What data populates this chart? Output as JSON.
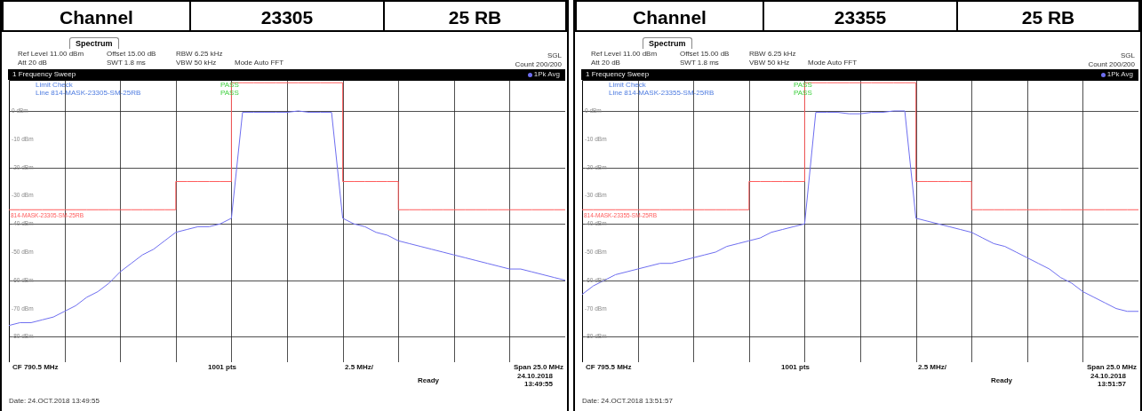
{
  "chart_data": [
    {
      "type": "line",
      "ylim": [
        -89,
        11
      ],
      "yticks": [
        {
          "value": 0,
          "label": "0 dBm"
        },
        {
          "value": -10,
          "label": "-10 dBm"
        },
        {
          "value": -20,
          "label": "-20 dBm"
        },
        {
          "value": -30,
          "label": "-30 dBm"
        },
        {
          "value": -40,
          "label": "-40 dBm"
        },
        {
          "value": -50,
          "label": "-50 dBm"
        },
        {
          "value": -60,
          "label": "-60 dBm"
        },
        {
          "value": -70,
          "label": "-70 dBm"
        },
        {
          "value": -80,
          "label": "-80 dBm"
        }
      ],
      "categories": [
        null,
        null,
        null,
        null,
        null,
        null,
        null,
        null,
        null,
        null,
        null,
        null,
        null,
        null,
        null,
        null,
        null,
        null,
        null,
        null,
        null,
        null,
        null,
        null,
        null,
        null,
        null,
        null,
        null,
        null,
        null,
        null,
        null,
        null,
        null,
        null,
        null,
        null,
        null,
        null,
        null,
        null,
        null,
        null,
        null,
        null,
        null,
        null,
        null,
        null,
        null
      ],
      "tick_labels": "y",
      "grid": true,
      "legend": "top right",
      "series": [
        {
          "name": "1Pk Avg",
          "color": "#6e6ef0",
          "values": [
            -76,
            -75,
            -75,
            -74,
            -73,
            -71,
            -69,
            -66,
            -64,
            -61,
            -57,
            -54,
            -51,
            -49,
            -46,
            -43,
            -42,
            -41,
            -41,
            -40,
            -38,
            -0.5,
            -0.5,
            -0.5,
            -0.5,
            -0.5,
            0,
            -0.5,
            -0.5,
            -0.5,
            -38,
            -40,
            -41,
            -43,
            -44,
            -46,
            -47,
            -48,
            -49,
            -50,
            -51,
            -52,
            -53,
            -54,
            -55,
            -56,
            -56,
            -57,
            -58,
            -59,
            -60
          ]
        },
        {
          "name": "814-MASK-23305-SM-25RB",
          "type": "step",
          "color": "#ff5a5a",
          "values": [
            -35,
            -35,
            -35,
            -35,
            -35,
            -35,
            -35,
            -35,
            -35,
            -35,
            -35,
            -35,
            -35,
            -35,
            -35,
            -25,
            -25,
            -25,
            -25,
            -25,
            10,
            10,
            10,
            10,
            10,
            10,
            10,
            10,
            10,
            10,
            -25,
            -25,
            -25,
            -25,
            -25,
            -35,
            -35,
            -35,
            -35,
            -35,
            -35,
            -35,
            -35,
            -35,
            -35,
            -35,
            -35,
            -35,
            -35,
            -35,
            -35
          ]
        }
      ],
      "annotations": [
        "Channel",
        "23305",
        "25 RB",
        "Spectrum",
        "Ref Level 11.00 dBm",
        "Offset 15.00 dB",
        "RBW 6.25 kHz",
        "Att 20 dB",
        "SWT 1.8 ms",
        "VBW 50 kHz",
        "Mode Auto FFT",
        "SGL",
        "Count 200/200",
        "1 Frequency Sweep",
        "Limit Check",
        "PASS",
        "Line 814-MASK-23305-SM-25RB",
        "PASS",
        "CF 790.5 MHz",
        "1001 pts",
        "2.5 MHz/",
        "Span 25.0 MHz",
        "Ready",
        "24.10.2018",
        "13:49:55",
        "Date: 24.OCT.2018 13:49:55"
      ]
    },
    {
      "type": "line",
      "ylim": [
        -89,
        11
      ],
      "yticks": [
        {
          "value": 0,
          "label": "0 dBm"
        },
        {
          "value": -10,
          "label": "-10 dBm"
        },
        {
          "value": -20,
          "label": "-20 dBm"
        },
        {
          "value": -30,
          "label": "-30 dBm"
        },
        {
          "value": -40,
          "label": "-40 dBm"
        },
        {
          "value": -50,
          "label": "-50 dBm"
        },
        {
          "value": -60,
          "label": "-60 dBm"
        },
        {
          "value": -70,
          "label": "-70 dBm"
        },
        {
          "value": -80,
          "label": "-80 dBm"
        }
      ],
      "categories": [
        null,
        null,
        null,
        null,
        null,
        null,
        null,
        null,
        null,
        null,
        null,
        null,
        null,
        null,
        null,
        null,
        null,
        null,
        null,
        null,
        null,
        null,
        null,
        null,
        null,
        null,
        null,
        null,
        null,
        null,
        null,
        null,
        null,
        null,
        null,
        null,
        null,
        null,
        null,
        null,
        null,
        null,
        null,
        null,
        null,
        null,
        null,
        null,
        null,
        null,
        null
      ],
      "tick_labels": "y",
      "grid": true,
      "legend": "top right",
      "series": [
        {
          "name": "1Pk Avg",
          "color": "#6e6ef0",
          "values": [
            -65,
            -62,
            -60,
            -58,
            -57,
            -56,
            -55,
            -54,
            -54,
            -53,
            -52,
            -51,
            -50,
            -48,
            -47,
            -46,
            -45,
            -43,
            -42,
            -41,
            -40,
            -0.5,
            -0.5,
            -0.5,
            -1,
            -1,
            -0.5,
            -0.5,
            0,
            0,
            -38,
            -39,
            -40,
            -41,
            -42,
            -43,
            -45,
            -47,
            -48,
            -50,
            -52,
            -54,
            -56,
            -59,
            -61,
            -64,
            -66,
            -68,
            -70,
            -71,
            -71
          ]
        },
        {
          "name": "814-MASK-23355-SM-25RB",
          "type": "step",
          "color": "#ff5a5a",
          "values": [
            -35,
            -35,
            -35,
            -35,
            -35,
            -35,
            -35,
            -35,
            -35,
            -35,
            -35,
            -35,
            -35,
            -35,
            -35,
            -25,
            -25,
            -25,
            -25,
            -25,
            10,
            10,
            10,
            10,
            10,
            10,
            10,
            10,
            10,
            10,
            -25,
            -25,
            -25,
            -25,
            -25,
            -35,
            -35,
            -35,
            -35,
            -35,
            -35,
            -35,
            -35,
            -35,
            -35,
            -35,
            -35,
            -35,
            -35,
            -35,
            -35
          ]
        }
      ],
      "annotations": [
        "Channel",
        "23355",
        "25 RB",
        "Spectrum",
        "Ref Level 11.00 dBm",
        "Offset 15.00 dB",
        "RBW 6.25 kHz",
        "Att 20 dB",
        "SWT 1.8 ms",
        "VBW 50 kHz",
        "Mode Auto FFT",
        "SGL",
        "Count 200/200",
        "1 Frequency Sweep",
        "Limit Check",
        "PASS",
        "Line 814-MASK-23355-SM-25RB",
        "PASS",
        "CF 795.5 MHz",
        "1001 pts",
        "2.5 MHz/",
        "Span 25.0 MHz",
        "Ready",
        "24.10.2018",
        "13:51:57",
        "Date: 24.OCT.2018 13:51:57"
      ]
    }
  ]
}
